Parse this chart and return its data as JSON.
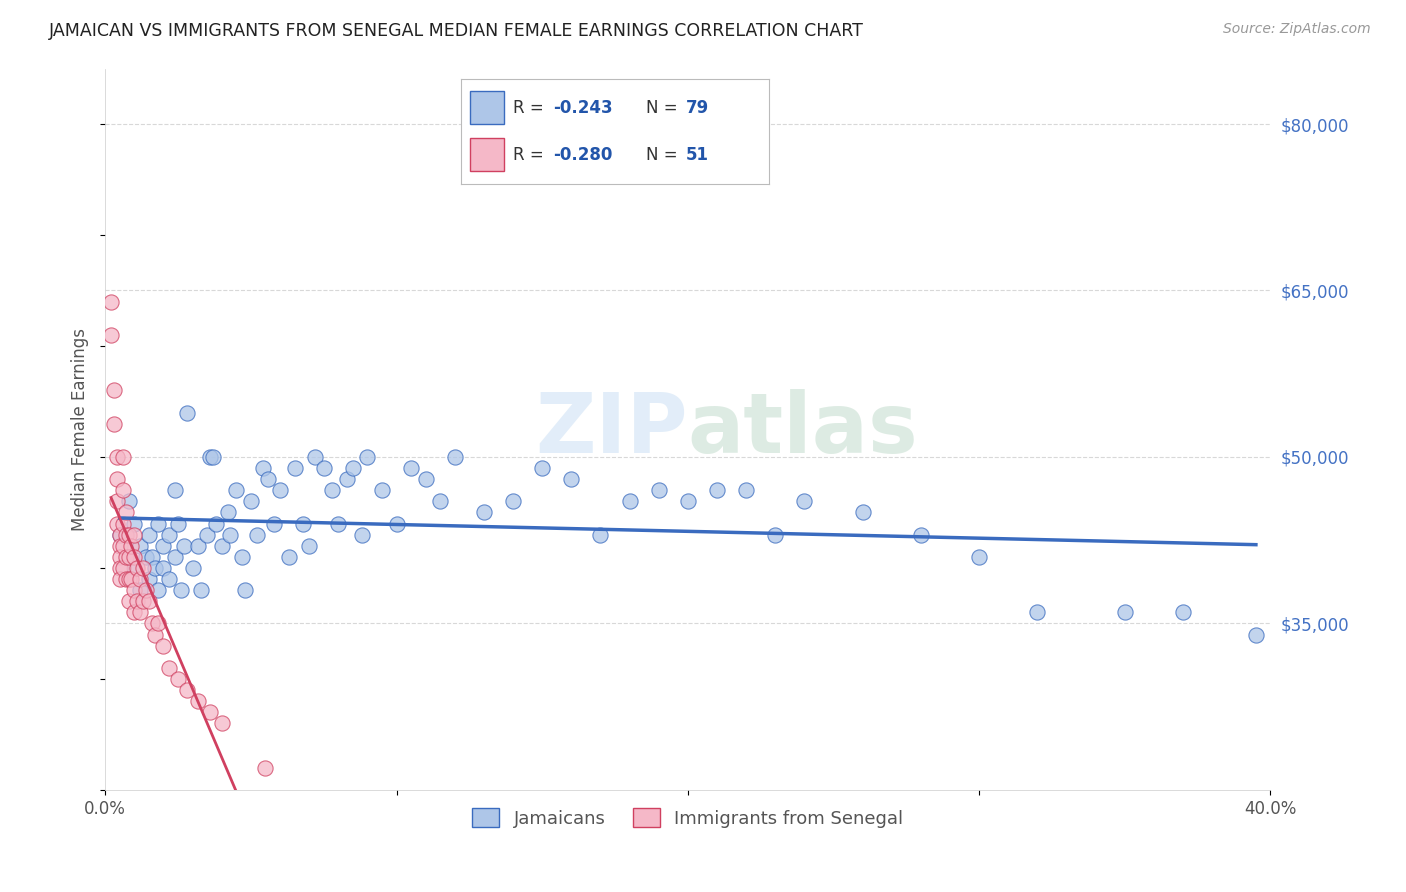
{
  "title": "JAMAICAN VS IMMIGRANTS FROM SENEGAL MEDIAN FEMALE EARNINGS CORRELATION CHART",
  "source": "Source: ZipAtlas.com",
  "ylabel": "Median Female Earnings",
  "xlim": [
    0.0,
    0.4
  ],
  "ylim": [
    20000,
    85000
  ],
  "yticks": [
    35000,
    50000,
    65000,
    80000
  ],
  "ytick_labels": [
    "$35,000",
    "$50,000",
    "$65,000",
    "$80,000"
  ],
  "xticks": [
    0.0,
    0.1,
    0.2,
    0.3,
    0.4
  ],
  "xtick_labels": [
    "0.0%",
    "",
    "",
    "",
    "40.0%"
  ],
  "background_color": "#ffffff",
  "grid_color": "#d8d8d8",
  "blue_color": "#aec6e8",
  "pink_color": "#f5b8c8",
  "blue_line_color": "#3a6bbf",
  "pink_line_color": "#d04060",
  "r_blue": "-0.243",
  "n_blue": "79",
  "r_pink": "-0.280",
  "n_pink": "51",
  "legend_label_1": "Jamaicans",
  "legend_label_2": "Immigrants from Senegal",
  "watermark_zip": "ZIP",
  "watermark_atlas": "atlas",
  "blue_scatter_x": [
    0.005,
    0.008,
    0.01,
    0.01,
    0.012,
    0.012,
    0.014,
    0.015,
    0.015,
    0.016,
    0.017,
    0.018,
    0.018,
    0.02,
    0.02,
    0.022,
    0.022,
    0.024,
    0.024,
    0.025,
    0.026,
    0.027,
    0.028,
    0.03,
    0.032,
    0.033,
    0.035,
    0.036,
    0.037,
    0.038,
    0.04,
    0.042,
    0.043,
    0.045,
    0.047,
    0.048,
    0.05,
    0.052,
    0.054,
    0.056,
    0.058,
    0.06,
    0.063,
    0.065,
    0.068,
    0.07,
    0.072,
    0.075,
    0.078,
    0.08,
    0.083,
    0.085,
    0.088,
    0.09,
    0.095,
    0.1,
    0.105,
    0.11,
    0.115,
    0.12,
    0.13,
    0.14,
    0.15,
    0.16,
    0.17,
    0.18,
    0.19,
    0.2,
    0.21,
    0.22,
    0.23,
    0.24,
    0.26,
    0.28,
    0.3,
    0.32,
    0.35,
    0.37,
    0.395
  ],
  "blue_scatter_y": [
    43000,
    46000,
    40000,
    44000,
    38000,
    42000,
    41000,
    43000,
    39000,
    41000,
    40000,
    38000,
    44000,
    42000,
    40000,
    39000,
    43000,
    41000,
    47000,
    44000,
    38000,
    42000,
    54000,
    40000,
    42000,
    38000,
    43000,
    50000,
    50000,
    44000,
    42000,
    45000,
    43000,
    47000,
    41000,
    38000,
    46000,
    43000,
    49000,
    48000,
    44000,
    47000,
    41000,
    49000,
    44000,
    42000,
    50000,
    49000,
    47000,
    44000,
    48000,
    49000,
    43000,
    50000,
    47000,
    44000,
    49000,
    48000,
    46000,
    50000,
    45000,
    46000,
    49000,
    48000,
    43000,
    46000,
    47000,
    46000,
    47000,
    47000,
    43000,
    46000,
    45000,
    43000,
    41000,
    36000,
    36000,
    36000,
    34000
  ],
  "pink_scatter_x": [
    0.002,
    0.002,
    0.003,
    0.003,
    0.004,
    0.004,
    0.004,
    0.004,
    0.005,
    0.005,
    0.005,
    0.005,
    0.005,
    0.006,
    0.006,
    0.006,
    0.006,
    0.006,
    0.007,
    0.007,
    0.007,
    0.007,
    0.008,
    0.008,
    0.008,
    0.008,
    0.009,
    0.009,
    0.01,
    0.01,
    0.01,
    0.01,
    0.011,
    0.011,
    0.012,
    0.012,
    0.013,
    0.013,
    0.014,
    0.015,
    0.016,
    0.017,
    0.018,
    0.02,
    0.022,
    0.025,
    0.028,
    0.032,
    0.036,
    0.04,
    0.055
  ],
  "pink_scatter_y": [
    64000,
    61000,
    56000,
    53000,
    50000,
    48000,
    46000,
    44000,
    43000,
    42000,
    41000,
    40000,
    39000,
    50000,
    47000,
    44000,
    42000,
    40000,
    45000,
    43000,
    41000,
    39000,
    43000,
    41000,
    39000,
    37000,
    42000,
    39000,
    43000,
    41000,
    38000,
    36000,
    40000,
    37000,
    39000,
    36000,
    40000,
    37000,
    38000,
    37000,
    35000,
    34000,
    35000,
    33000,
    31000,
    30000,
    29000,
    28000,
    27000,
    26000,
    22000
  ]
}
